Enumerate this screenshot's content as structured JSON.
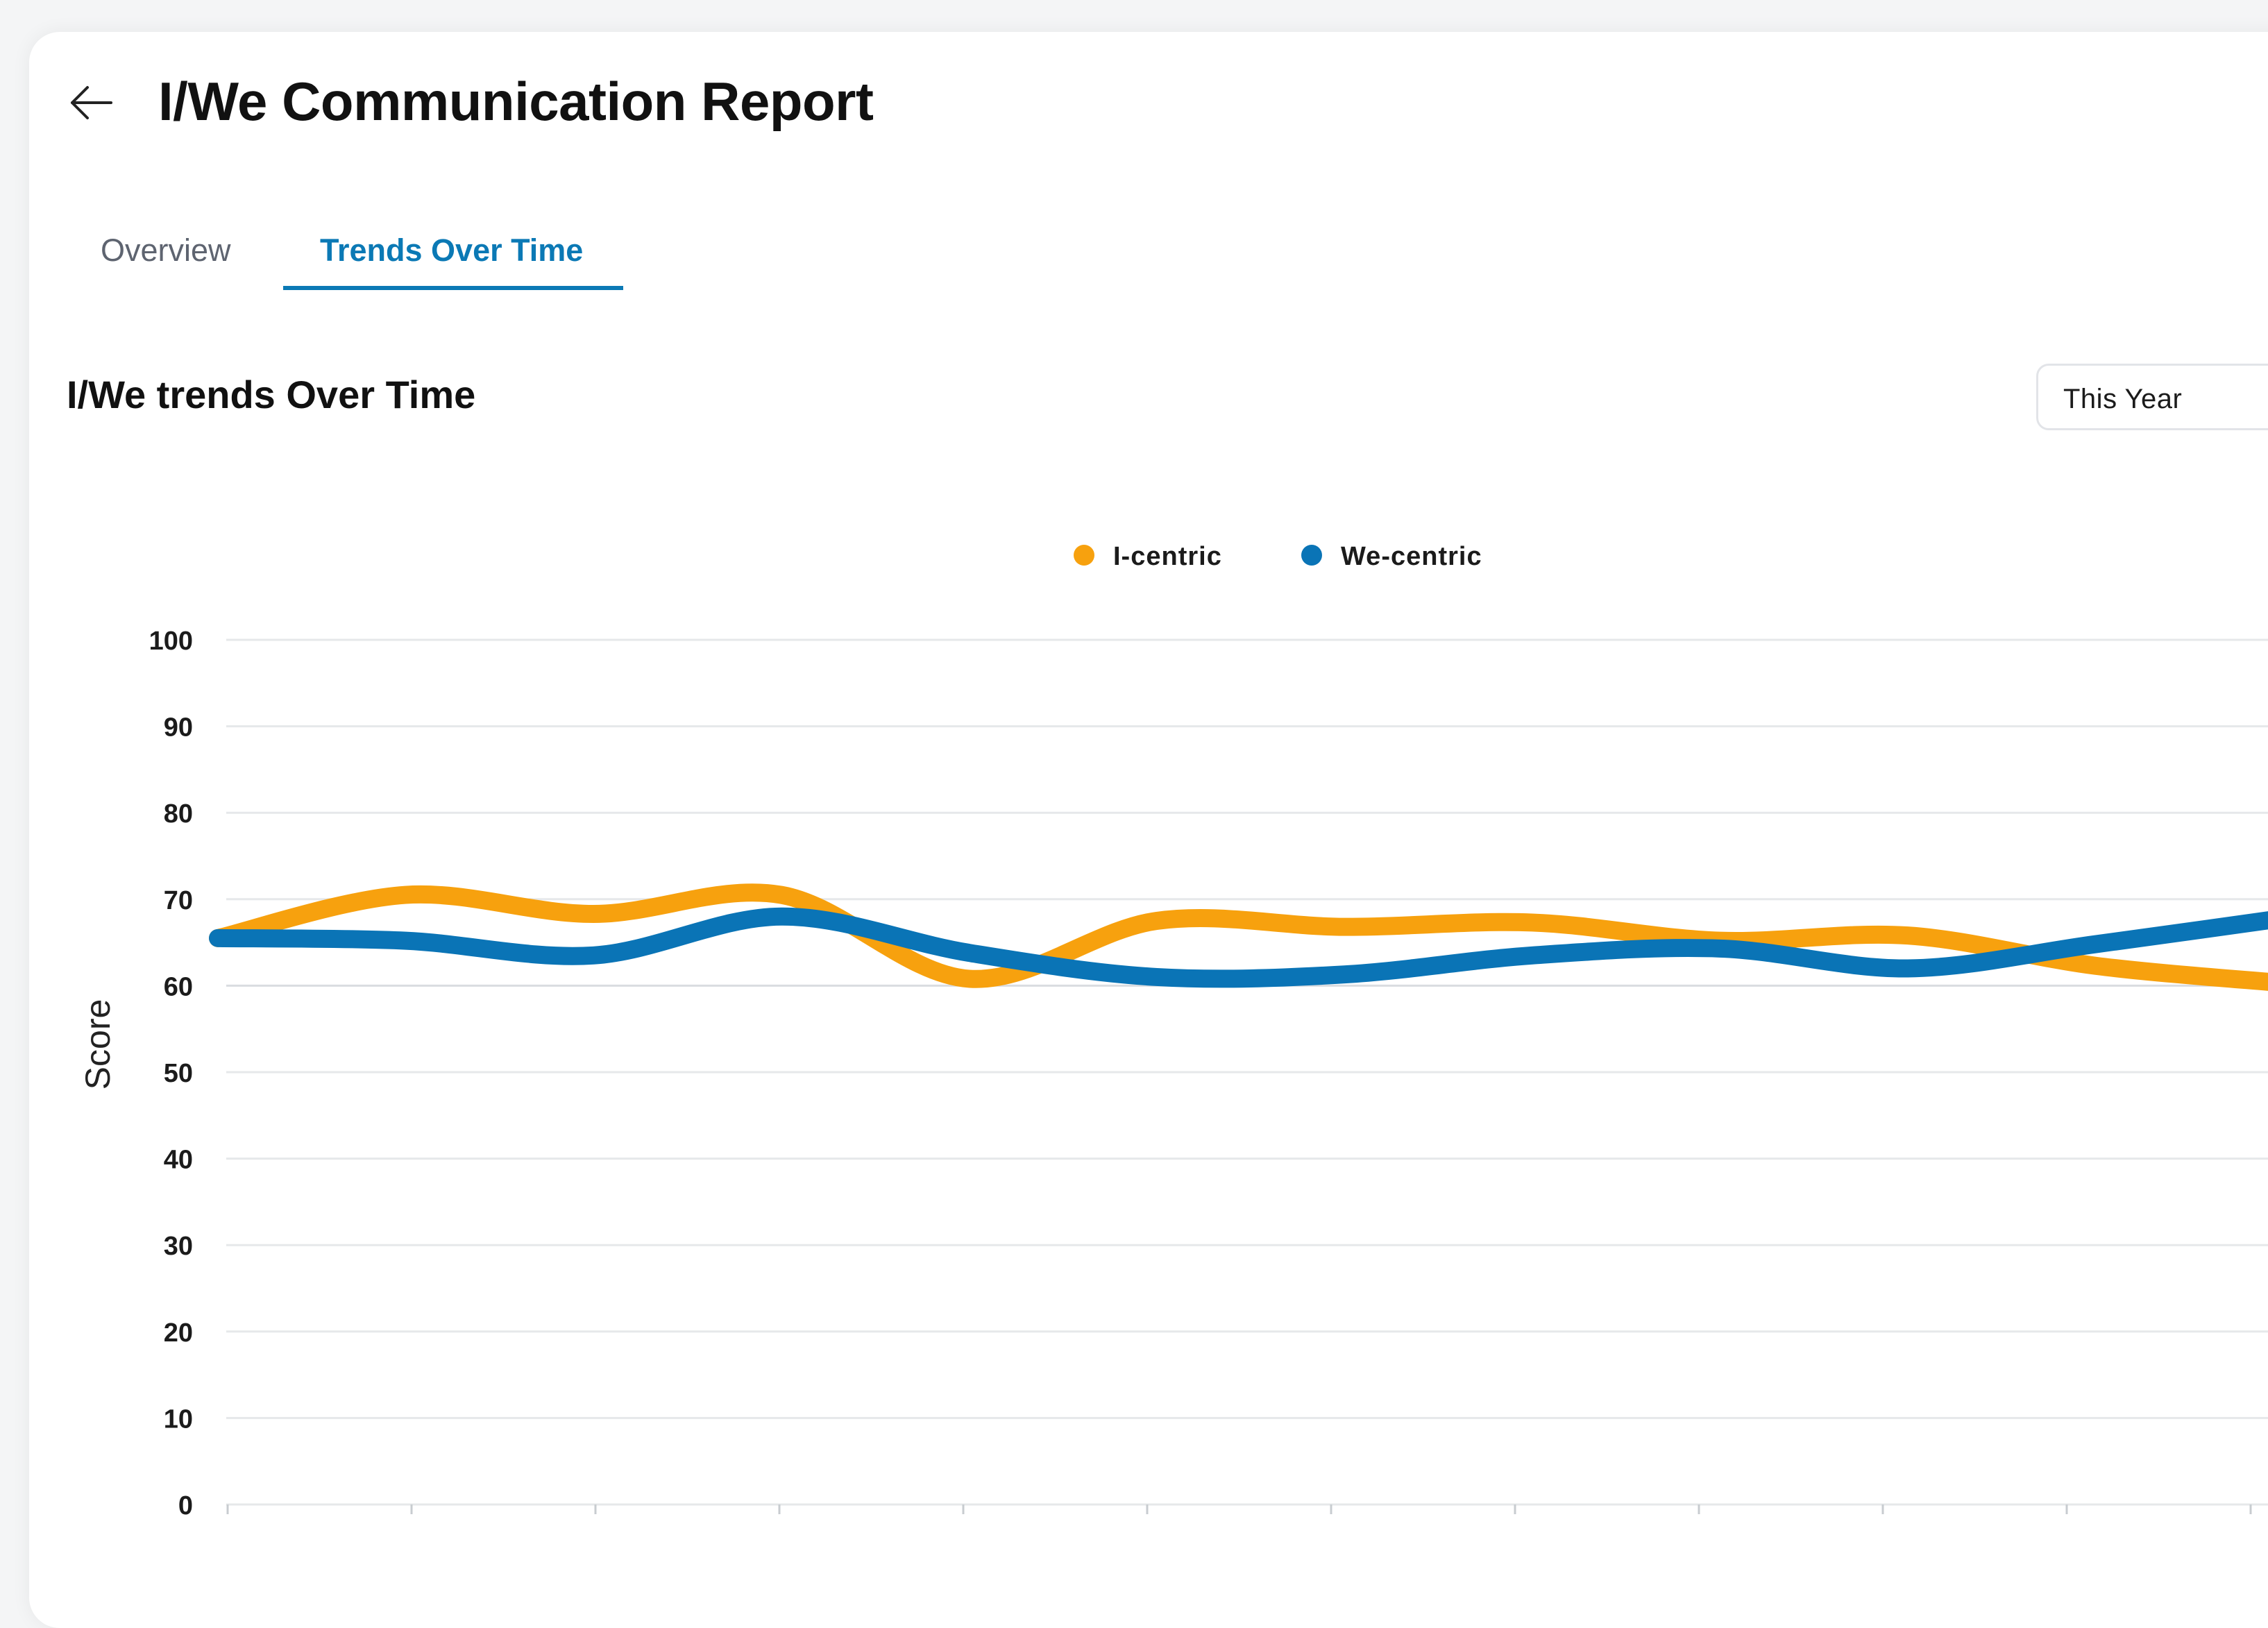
{
  "header": {
    "title": "I/We Communication Report",
    "back_icon": "arrow-left-icon"
  },
  "tabs": [
    {
      "label": "Overview",
      "active": false
    },
    {
      "label": "Trends Over Time",
      "active": true
    }
  ],
  "section": {
    "title": "I/We trends Over Time"
  },
  "period_select": {
    "value": "This Year"
  },
  "colors": {
    "accent": "#0b79b5",
    "i_centric": "#f7a10e",
    "we_centric": "#0a74b6",
    "grid": "#e6e8ea"
  },
  "chart_data": {
    "type": "line",
    "ylabel": "Score",
    "ylim": [
      0,
      100
    ],
    "yticks": [
      100,
      90,
      80,
      70,
      60,
      50,
      40,
      30,
      20,
      10,
      0
    ],
    "legend_position": "top-center",
    "smooth": true,
    "grid": true,
    "x": [
      0,
      1,
      2,
      3,
      4,
      5,
      6,
      7,
      8,
      9,
      10,
      11
    ],
    "series": [
      {
        "name": "I-centric",
        "color": "#f7a10e",
        "values": [
          65.5,
          70.5,
          68.3,
          70.5,
          60.8,
          67.5,
          66.8,
          67.3,
          65.2,
          65.8,
          62.3,
          60.3
        ]
      },
      {
        "name": "We-centric",
        "color": "#0a74b6",
        "values": [
          65.5,
          65.2,
          63.5,
          68.0,
          63.8,
          61.0,
          61.3,
          63.5,
          64.3,
          62.0,
          64.8,
          67.8
        ]
      }
    ]
  }
}
